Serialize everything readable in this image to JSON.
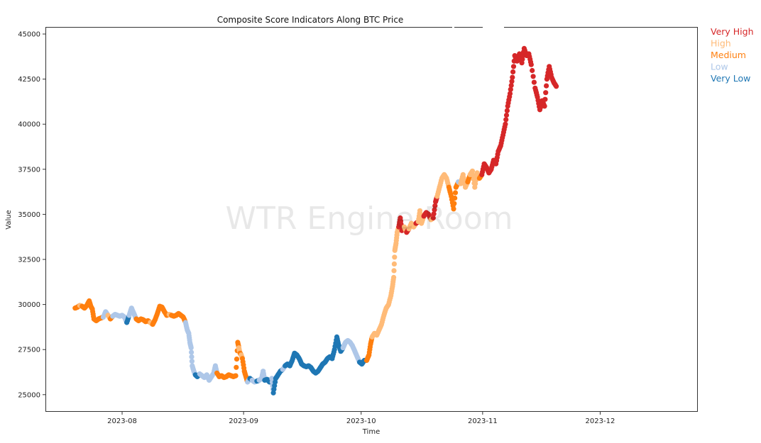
{
  "chart_data": {
    "type": "scatter",
    "title": "Composite Score Indicators Along BTC Price",
    "xlabel": "Time",
    "ylabel": "Value",
    "x_unit": "days since 2023-07-01",
    "xlim_dates": [
      "2023-07-01",
      "2023-12-28"
    ],
    "x_ticks": [
      {
        "label": "2023-08",
        "day": 31
      },
      {
        "label": "2023-09",
        "day": 62
      },
      {
        "label": "2023-10",
        "day": 92
      },
      {
        "label": "2023-11",
        "day": 123
      },
      {
        "label": "2023-12",
        "day": 153
      }
    ],
    "ylim": [
      24200,
      45400
    ],
    "y_ticks": [
      25000,
      27500,
      30000,
      32500,
      35000,
      37500,
      40000,
      42500,
      45000
    ],
    "grid": false,
    "legend_position": "outside-top-right",
    "watermark": "WTR Engine Room",
    "categories": [
      {
        "name": "Very High",
        "color": "#d62728"
      },
      {
        "name": "High",
        "color": "#ffbb78"
      },
      {
        "name": "Medium",
        "color": "#ff7f0e"
      },
      {
        "name": "Low",
        "color": "#aec7e8"
      },
      {
        "name": "Very Low",
        "color": "#1f77b4"
      }
    ],
    "points": [
      [
        19.0,
        29800,
        "Medium"
      ],
      [
        19.6,
        29850,
        "Medium"
      ],
      [
        20.2,
        29950,
        "High"
      ],
      [
        20.8,
        29900,
        "Medium"
      ],
      [
        21.4,
        29800,
        "Medium"
      ],
      [
        22.0,
        29950,
        "Medium"
      ],
      [
        22.6,
        30200,
        "Medium"
      ],
      [
        23.0,
        29900,
        "Medium"
      ],
      [
        23.4,
        29750,
        "Medium"
      ],
      [
        23.8,
        29200,
        "Medium"
      ],
      [
        24.4,
        29100,
        "Medium"
      ],
      [
        25.0,
        29200,
        "Medium"
      ],
      [
        25.6,
        29250,
        "Medium"
      ],
      [
        26.2,
        29300,
        "Low"
      ],
      [
        26.8,
        29600,
        "Low"
      ],
      [
        27.4,
        29400,
        "High"
      ],
      [
        28.0,
        29200,
        "Medium"
      ],
      [
        28.6,
        29350,
        "Low"
      ],
      [
        29.2,
        29450,
        "Low"
      ],
      [
        29.8,
        29400,
        "Low"
      ],
      [
        30.4,
        29350,
        "Low"
      ],
      [
        31.0,
        29400,
        "Low"
      ],
      [
        31.6,
        29300,
        "Low"
      ],
      [
        32.2,
        29000,
        "Very Low"
      ],
      [
        32.8,
        29400,
        "Low"
      ],
      [
        33.4,
        29800,
        "Low"
      ],
      [
        34.0,
        29500,
        "Low"
      ],
      [
        34.6,
        29200,
        "Medium"
      ],
      [
        35.2,
        29100,
        "Medium"
      ],
      [
        35.8,
        29200,
        "Medium"
      ],
      [
        36.4,
        29150,
        "Medium"
      ],
      [
        37.0,
        29050,
        "Medium"
      ],
      [
        37.6,
        29100,
        "Medium"
      ],
      [
        38.2,
        29000,
        "High"
      ],
      [
        38.8,
        28900,
        "Medium"
      ],
      [
        39.4,
        29150,
        "Medium"
      ],
      [
        40.0,
        29500,
        "Medium"
      ],
      [
        40.6,
        29900,
        "Medium"
      ],
      [
        41.2,
        29850,
        "Medium"
      ],
      [
        41.8,
        29600,
        "Medium"
      ],
      [
        42.4,
        29400,
        "Medium"
      ],
      [
        43.0,
        29450,
        "High"
      ],
      [
        43.6,
        29400,
        "Medium"
      ],
      [
        44.2,
        29350,
        "Medium"
      ],
      [
        44.8,
        29400,
        "Medium"
      ],
      [
        45.4,
        29500,
        "Medium"
      ],
      [
        46.0,
        29400,
        "Medium"
      ],
      [
        46.6,
        29300,
        "Medium"
      ],
      [
        47.2,
        29000,
        "Low"
      ],
      [
        47.6,
        28600,
        "Low"
      ],
      [
        48.0,
        28400,
        "Low"
      ],
      [
        48.3,
        27900,
        "Low"
      ],
      [
        48.6,
        27600,
        "Low"
      ],
      [
        48.9,
        26600,
        "Low"
      ],
      [
        49.3,
        26300,
        "Low"
      ],
      [
        49.7,
        26100,
        "Very Low"
      ],
      [
        50.2,
        26000,
        "Very Low"
      ],
      [
        50.8,
        26150,
        "Low"
      ],
      [
        51.4,
        26050,
        "Low"
      ],
      [
        52.0,
        25950,
        "Low"
      ],
      [
        52.6,
        26100,
        "Low"
      ],
      [
        53.2,
        25800,
        "Low"
      ],
      [
        53.8,
        26000,
        "Low"
      ],
      [
        54.4,
        26200,
        "Low"
      ],
      [
        54.8,
        26600,
        "Low"
      ],
      [
        55.2,
        26200,
        "Medium"
      ],
      [
        55.8,
        26000,
        "Medium"
      ],
      [
        56.4,
        26050,
        "Medium"
      ],
      [
        57.0,
        25950,
        "Medium"
      ],
      [
        57.6,
        26000,
        "Medium"
      ],
      [
        58.2,
        26100,
        "Medium"
      ],
      [
        58.8,
        26050,
        "Medium"
      ],
      [
        59.4,
        26000,
        "Medium"
      ],
      [
        60.0,
        26050,
        "Medium"
      ],
      [
        60.5,
        27900,
        "Medium"
      ],
      [
        60.8,
        27600,
        "High"
      ],
      [
        61.1,
        27300,
        "Medium"
      ],
      [
        61.4,
        27200,
        "High"
      ],
      [
        61.7,
        27000,
        "Medium"
      ],
      [
        62.2,
        26300,
        "Medium"
      ],
      [
        62.6,
        26000,
        "Medium"
      ],
      [
        63.0,
        25700,
        "Low"
      ],
      [
        63.6,
        25900,
        "Very Low"
      ],
      [
        64.2,
        25800,
        "Low"
      ],
      [
        64.8,
        25700,
        "Low"
      ],
      [
        65.4,
        25750,
        "Very Low"
      ],
      [
        66.0,
        25800,
        "Low"
      ],
      [
        66.6,
        25900,
        "Low"
      ],
      [
        67.0,
        26300,
        "Low"
      ],
      [
        67.4,
        25800,
        "Very Low"
      ],
      [
        68.0,
        25850,
        "Very Low"
      ],
      [
        68.6,
        25700,
        "Very Low"
      ],
      [
        69.2,
        25900,
        "Low"
      ],
      [
        69.6,
        25100,
        "Very Low"
      ],
      [
        70.2,
        25900,
        "Very Low"
      ],
      [
        70.8,
        26100,
        "Very Low"
      ],
      [
        71.4,
        26300,
        "Very Low"
      ],
      [
        72.0,
        26400,
        "Low"
      ],
      [
        72.6,
        26600,
        "Very Low"
      ],
      [
        73.2,
        26700,
        "Very Low"
      ],
      [
        73.8,
        26600,
        "Very Low"
      ],
      [
        74.4,
        26900,
        "Very Low"
      ],
      [
        75.0,
        27300,
        "Very Low"
      ],
      [
        75.6,
        27200,
        "Very Low"
      ],
      [
        76.2,
        27000,
        "Very Low"
      ],
      [
        76.8,
        26700,
        "Very Low"
      ],
      [
        77.4,
        26600,
        "Very Low"
      ],
      [
        78.0,
        26550,
        "Very Low"
      ],
      [
        78.6,
        26600,
        "Very Low"
      ],
      [
        79.2,
        26500,
        "Very Low"
      ],
      [
        79.8,
        26300,
        "Very Low"
      ],
      [
        80.4,
        26200,
        "Very Low"
      ],
      [
        81.0,
        26300,
        "Very Low"
      ],
      [
        81.6,
        26500,
        "Very Low"
      ],
      [
        82.2,
        26700,
        "Very Low"
      ],
      [
        82.8,
        26800,
        "Very Low"
      ],
      [
        83.4,
        27000,
        "Very Low"
      ],
      [
        84.0,
        27100,
        "Very Low"
      ],
      [
        84.6,
        27000,
        "Very Low"
      ],
      [
        85.2,
        27500,
        "Very Low"
      ],
      [
        85.8,
        28200,
        "Very Low"
      ],
      [
        86.2,
        27800,
        "Very Low"
      ],
      [
        86.8,
        27400,
        "Very Low"
      ],
      [
        87.4,
        27600,
        "Low"
      ],
      [
        88.0,
        27900,
        "Low"
      ],
      [
        88.6,
        28000,
        "Low"
      ],
      [
        89.2,
        27900,
        "Low"
      ],
      [
        89.8,
        27700,
        "Low"
      ],
      [
        90.4,
        27400,
        "Low"
      ],
      [
        91.0,
        27100,
        "Low"
      ],
      [
        91.6,
        26800,
        "Very Low"
      ],
      [
        92.2,
        26700,
        "Very Low"
      ],
      [
        92.8,
        26900,
        "Very Low"
      ],
      [
        93.4,
        26900,
        "Medium"
      ],
      [
        94.0,
        27200,
        "Medium"
      ],
      [
        94.4,
        27800,
        "Medium"
      ],
      [
        94.8,
        28200,
        "High"
      ],
      [
        95.4,
        28400,
        "High"
      ],
      [
        96.0,
        28300,
        "High"
      ],
      [
        96.6,
        28600,
        "High"
      ],
      [
        97.2,
        28900,
        "High"
      ],
      [
        97.8,
        29400,
        "High"
      ],
      [
        98.4,
        29800,
        "High"
      ],
      [
        99.0,
        30000,
        "High"
      ],
      [
        99.6,
        30500,
        "High"
      ],
      [
        100.0,
        31000,
        "High"
      ],
      [
        100.3,
        31500,
        "High"
      ],
      [
        100.6,
        33000,
        "High"
      ],
      [
        100.9,
        33400,
        "High"
      ],
      [
        101.2,
        34000,
        "High"
      ],
      [
        101.6,
        34300,
        "Very High"
      ],
      [
        102.0,
        34800,
        "Very High"
      ],
      [
        102.4,
        34100,
        "Very High"
      ],
      [
        103.0,
        34300,
        "High"
      ],
      [
        103.6,
        34000,
        "Very High"
      ],
      [
        104.2,
        34200,
        "High"
      ],
      [
        104.8,
        34500,
        "High"
      ],
      [
        105.4,
        34300,
        "High"
      ],
      [
        106.0,
        34500,
        "Very High"
      ],
      [
        106.6,
        34600,
        "High"
      ],
      [
        107.0,
        35200,
        "High"
      ],
      [
        107.4,
        34500,
        "High"
      ],
      [
        108.0,
        34900,
        "Very High"
      ],
      [
        108.6,
        35100,
        "Very High"
      ],
      [
        109.2,
        35000,
        "Very High"
      ],
      [
        109.8,
        34700,
        "High"
      ],
      [
        110.4,
        34800,
        "Very High"
      ],
      [
        111.0,
        35700,
        "Very High"
      ],
      [
        111.4,
        36000,
        "High"
      ],
      [
        112.0,
        36500,
        "High"
      ],
      [
        112.6,
        37000,
        "High"
      ],
      [
        113.2,
        37200,
        "High"
      ],
      [
        113.8,
        37000,
        "High"
      ],
      [
        114.4,
        36500,
        "Medium"
      ],
      [
        115.0,
        36000,
        "Medium"
      ],
      [
        115.6,
        35300,
        "Medium"
      ],
      [
        116.2,
        36500,
        "Medium"
      ],
      [
        116.8,
        36800,
        "Low"
      ],
      [
        117.4,
        36700,
        "High"
      ],
      [
        118.0,
        37200,
        "High"
      ],
      [
        118.6,
        36500,
        "High"
      ],
      [
        119.2,
        36800,
        "Medium"
      ],
      [
        119.8,
        37200,
        "High"
      ],
      [
        120.4,
        37400,
        "High"
      ],
      [
        121.0,
        36500,
        "High"
      ],
      [
        121.6,
        37300,
        "High"
      ],
      [
        122.2,
        37000,
        "Medium"
      ],
      [
        122.8,
        37200,
        "Very High"
      ],
      [
        123.4,
        37800,
        "Very High"
      ],
      [
        124.0,
        37600,
        "Very High"
      ],
      [
        124.6,
        37300,
        "Very High"
      ],
      [
        125.2,
        37500,
        "Very High"
      ],
      [
        125.8,
        38000,
        "Very High"
      ],
      [
        126.4,
        37800,
        "Very High"
      ],
      [
        127.0,
        38500,
        "Very High"
      ],
      [
        127.6,
        38800,
        "Very High"
      ],
      [
        128.2,
        39400,
        "Very High"
      ],
      [
        128.8,
        40000,
        "Very High"
      ],
      [
        129.4,
        41000,
        "Very High"
      ],
      [
        130.0,
        41700,
        "Very High"
      ],
      [
        130.6,
        42600,
        "Very High"
      ],
      [
        131.2,
        43800,
        "Very High"
      ],
      [
        131.8,
        43500,
        "Very High"
      ],
      [
        132.4,
        43900,
        "Very High"
      ],
      [
        133.0,
        43400,
        "Very High"
      ],
      [
        133.6,
        44200,
        "Very High"
      ],
      [
        134.2,
        43800,
        "Very High"
      ],
      [
        134.8,
        43900,
        "Very High"
      ],
      [
        135.4,
        43300,
        "Very High"
      ],
      [
        136.4,
        42000,
        "Very High"
      ],
      [
        137.0,
        41500,
        "Very High"
      ],
      [
        137.6,
        40800,
        "Very High"
      ],
      [
        138.2,
        41300,
        "Very High"
      ],
      [
        138.8,
        41000,
        "Very High"
      ],
      [
        139.4,
        42500,
        "Very High"
      ],
      [
        140.0,
        43200,
        "Very High"
      ],
      [
        140.6,
        42600,
        "Very High"
      ],
      [
        141.2,
        42300,
        "Very High"
      ],
      [
        141.8,
        42100,
        "Very High"
      ]
    ]
  }
}
